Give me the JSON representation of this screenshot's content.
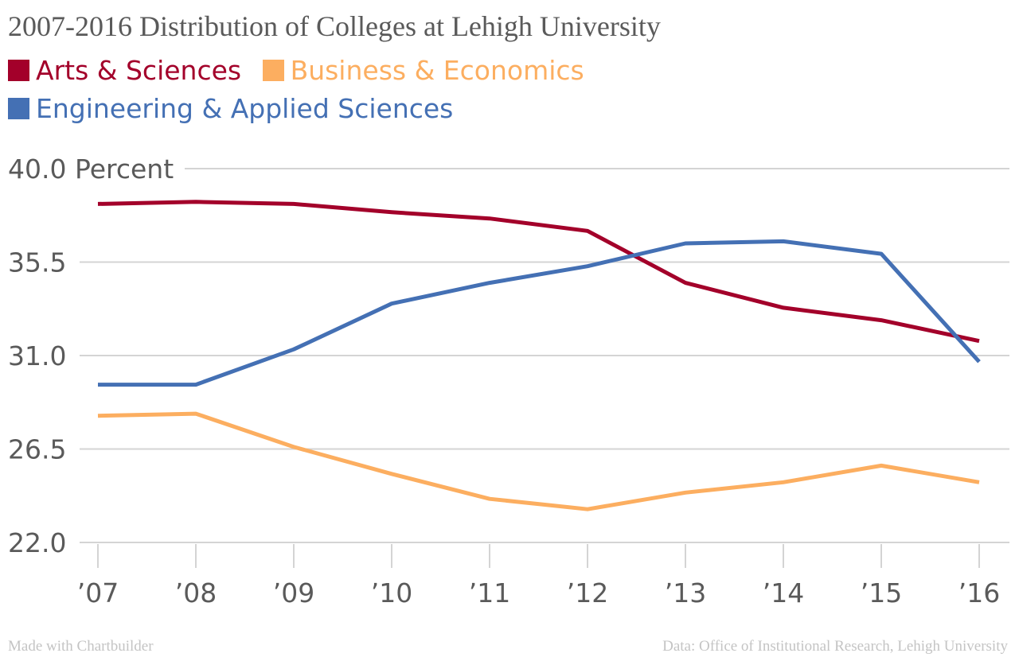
{
  "chart_data": {
    "type": "line",
    "title": "2007-2016 Distribution of Colleges at Lehigh University",
    "ylabel": "Percent",
    "x": [
      "’07",
      "’08",
      "’09",
      "’10",
      "’11",
      "’12",
      "’13",
      "’14",
      "’15",
      "’16"
    ],
    "yticks": [
      "22.0",
      "26.5",
      "31.0",
      "35.5",
      "40.0"
    ],
    "ylim": [
      22.0,
      40.0
    ],
    "grid": true,
    "legend_position": "top-left",
    "series": [
      {
        "name": "Arts & Sciences",
        "color": "#a3002a",
        "values": [
          38.3,
          38.4,
          38.3,
          37.9,
          37.6,
          37.0,
          34.5,
          33.3,
          32.7,
          31.7
        ]
      },
      {
        "name": "Business & Economics",
        "color": "#fcae60",
        "values": [
          28.1,
          28.2,
          26.6,
          25.3,
          24.1,
          23.6,
          24.4,
          24.9,
          25.7,
          24.9
        ]
      },
      {
        "name": "Engineering & Applied Sciences",
        "color": "#4470b4",
        "values": [
          29.6,
          29.6,
          31.3,
          33.5,
          34.5,
          35.3,
          36.4,
          36.5,
          35.9,
          30.7
        ]
      }
    ]
  },
  "footer": {
    "left": "Made with Chartbuilder",
    "right": "Data: Office of Institutional Research, Lehigh University"
  }
}
